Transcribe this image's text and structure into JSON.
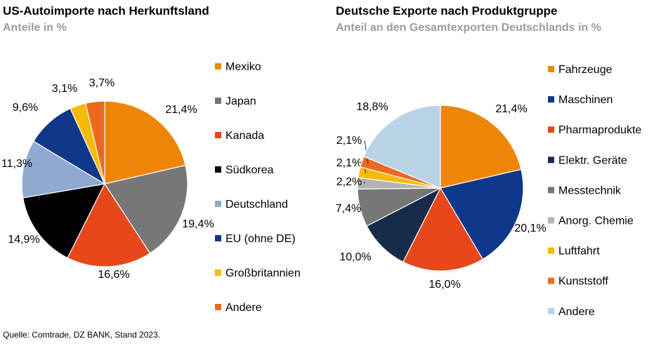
{
  "source": "Quelle: Comtrade, DZ BANK, Stand 2023.",
  "chart_data": [
    {
      "type": "pie",
      "title": "US-Autoimporte nach Herkunftsland",
      "subtitle": "Anteile in %",
      "legend_position": "right",
      "categories": [
        "Mexiko",
        "Japan",
        "Kanada",
        "Südkorea",
        "Deutschland",
        "EU (ohne DE)",
        "Großbritannien",
        "Andere"
      ],
      "values": [
        21.4,
        19.4,
        16.6,
        14.9,
        11.3,
        9.6,
        3.1,
        3.7
      ],
      "value_labels": [
        "21,4%",
        "19,4%",
        "16,6%",
        "14,9%",
        "11,3%",
        "9,6%",
        "3,1%",
        "3,7%"
      ],
      "colors": [
        "#EF8506",
        "#777777",
        "#E8471A",
        "#000000",
        "#8FA9D0",
        "#0F388A",
        "#F7B90A",
        "#EB6A1E"
      ]
    },
    {
      "type": "pie",
      "title": "Deutsche Exporte nach Produktgruppe",
      "subtitle": "Anteil an den Gesamtexporten Deutschlands in %",
      "legend_position": "right",
      "categories": [
        "Fahrzeuge",
        "Maschinen",
        "Pharmaprodukte",
        "Elektr. Geräte",
        "Messtechnik",
        "Anorg. Chemie",
        "Luftfahrt",
        "Kunststoff",
        "Andere"
      ],
      "values": [
        21.4,
        20.1,
        16.0,
        10.0,
        7.4,
        2.2,
        2.1,
        2.1,
        18.8
      ],
      "value_labels": [
        "21,4%",
        "20,1%",
        "16,0%",
        "10,0%",
        "7,4%",
        "2,2%",
        "2,1%",
        "2,1%",
        "18,8%"
      ],
      "colors": [
        "#EF8506",
        "#0F388A",
        "#E8471A",
        "#182C4A",
        "#777777",
        "#B3B3B3",
        "#F7B90A",
        "#EB6A1E",
        "#B9D3E6"
      ]
    }
  ]
}
